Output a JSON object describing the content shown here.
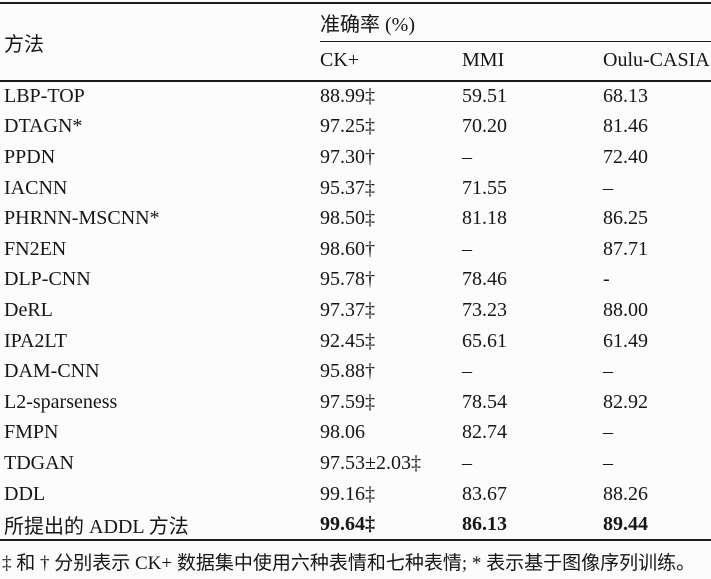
{
  "table": {
    "method_header": "方法",
    "accuracy_header": "准确率 (%)",
    "dataset_headers": [
      "CK+",
      "MMI",
      "Oulu-CASIA"
    ],
    "rows": [
      {
        "method": "LBP-TOP",
        "ck": "88.99‡",
        "mmi": "59.51",
        "oulu": "68.13",
        "bold": false
      },
      {
        "method": "DTAGN*",
        "ck": "97.25‡",
        "mmi": "70.20",
        "oulu": "81.46",
        "bold": false
      },
      {
        "method": "PPDN",
        "ck": "97.30†",
        "mmi": "–",
        "oulu": "72.40",
        "bold": false
      },
      {
        "method": "IACNN",
        "ck": "95.37‡",
        "mmi": "71.55",
        "oulu": "–",
        "bold": false
      },
      {
        "method": "PHRNN-MSCNN*",
        "ck": "98.50‡",
        "mmi": "81.18",
        "oulu": "86.25",
        "bold": false
      },
      {
        "method": "FN2EN",
        "ck": "98.60†",
        "mmi": "–",
        "oulu": "87.71",
        "bold": false
      },
      {
        "method": "DLP-CNN",
        "ck": "95.78†",
        "mmi": "78.46",
        "oulu": "-",
        "bold": false
      },
      {
        "method": "DeRL",
        "ck": "97.37‡",
        "mmi": "73.23",
        "oulu": "88.00",
        "bold": false
      },
      {
        "method": "IPA2LT",
        "ck": "92.45‡",
        "mmi": "65.61",
        "oulu": "61.49",
        "bold": false
      },
      {
        "method": "DAM-CNN",
        "ck": "95.88†",
        "mmi": "–",
        "oulu": "–",
        "bold": false
      },
      {
        "method": "L2-sparseness",
        "ck": "97.59‡",
        "mmi": "78.54",
        "oulu": "82.92",
        "bold": false
      },
      {
        "method": "FMPN",
        "ck": "98.06",
        "mmi": "82.74",
        "oulu": "–",
        "bold": false
      },
      {
        "method": "TDGAN",
        "ck": "97.53±2.03‡",
        "mmi": "–",
        "oulu": "–",
        "bold": false
      },
      {
        "method": "DDL",
        "ck": "99.16‡",
        "mmi": "83.67",
        "oulu": "88.26",
        "bold": false
      },
      {
        "method": "所提出的 ADDL 方法",
        "ck": "99.64‡",
        "mmi": "86.13",
        "oulu": "89.44",
        "bold": true
      }
    ],
    "footnote": "‡ 和 † 分别表示 CK+ 数据集中使用六种表情和七种表情; * 表示基于图像序列训练。"
  },
  "colors": {
    "background": "#fcfcfc",
    "text": "#161616",
    "rule": "#1b1b1b"
  }
}
